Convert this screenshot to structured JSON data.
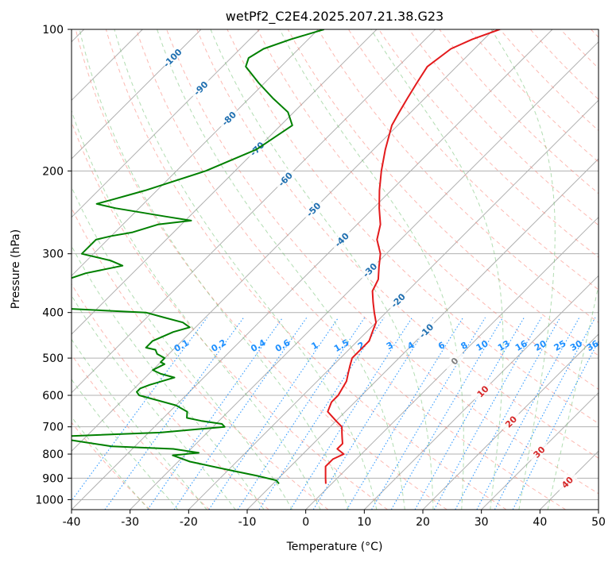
{
  "chart_data": {
    "type": "line",
    "title": "wetPf2_C2E4.2025.207.21.38.G23",
    "xlabel": "Temperature (°C)",
    "ylabel": "Pressure (hPa)",
    "xlim": [
      -40,
      50
    ],
    "ylim": [
      1050,
      100
    ],
    "y_scale": "log",
    "skew_deg": 45,
    "grid": true,
    "x_ticks": [
      "-40",
      "-30",
      "-20",
      "-10",
      "0",
      "10",
      "20",
      "30",
      "40",
      "50"
    ],
    "y_ticks": [
      "100",
      "200",
      "300",
      "400",
      "500",
      "600",
      "700",
      "800",
      "900",
      "1000"
    ],
    "series": [
      {
        "color": "#e31a1c",
        "pressure": [
          925,
          900,
          850,
          820,
          800,
          780,
          760,
          740,
          720,
          700,
          680,
          650,
          620,
          600,
          560,
          540,
          520,
          500,
          480,
          460,
          440,
          420,
          400,
          380,
          360,
          340,
          320,
          300,
          280,
          260,
          240,
          220,
          200,
          180,
          160,
          150,
          140,
          130,
          120,
          110,
          105,
          100
        ],
        "temperature": [
          -1,
          -2,
          -4,
          -4,
          -3,
          -5,
          -5,
          -6,
          -7,
          -8,
          -10,
          -13,
          -14,
          -14,
          -15,
          -16,
          -17,
          -18,
          -18,
          -18,
          -19,
          -20,
          -22,
          -24,
          -26,
          -27,
          -29,
          -31,
          -34,
          -36,
          -39,
          -42,
          -45,
          -48,
          -51,
          -52,
          -53,
          -54,
          -55,
          -54,
          -52,
          -49
        ]
      },
      {
        "color": "#008000",
        "pressure": [
          925,
          910,
          890,
          860,
          830,
          805,
          795,
          780,
          770,
          750,
          735,
          720,
          700,
          690,
          680,
          670,
          650,
          630,
          600,
          590,
          580,
          570,
          550,
          540,
          530,
          515,
          510,
          500,
          490,
          480,
          475,
          460,
          440,
          430,
          420,
          410,
          400,
          390,
          370,
          330,
          318,
          310,
          300,
          280,
          275,
          270,
          260,
          255,
          250,
          240,
          235,
          230,
          225,
          220,
          200,
          180,
          160,
          150,
          140,
          130,
          120,
          115,
          110,
          105,
          100
        ],
        "temperature": [
          -9,
          -10,
          -14,
          -21,
          -28,
          -32,
          -28,
          -33,
          -44,
          -51,
          -56,
          -38,
          -28,
          -29,
          -33,
          -36,
          -37,
          -40,
          -48,
          -49,
          -49,
          -48,
          -45,
          -48,
          -50,
          -49,
          -50,
          -50,
          -52,
          -53,
          -55,
          -55,
          -53,
          -51,
          -53,
          -57,
          -61,
          -80,
          -86,
          -78,
          -73,
          -76,
          -82,
          -82,
          -80,
          -77,
          -74,
          -69,
          -74,
          -84,
          -88,
          -86,
          -84,
          -82,
          -75,
          -70,
          -68,
          -71,
          -76,
          -81,
          -86,
          -87,
          -86,
          -83,
          -79
        ]
      }
    ],
    "annotations": {
      "mixing_ratio_labels": [
        "0.1",
        "0.2",
        "0.4",
        "0.6",
        "1",
        "1.5",
        "2",
        "3",
        "4",
        "6",
        "8",
        "10",
        "13",
        "16",
        "20",
        "25",
        "30",
        "36"
      ],
      "isotherm_labels": [
        "-100",
        "-90",
        "-80",
        "-70",
        "-60",
        "-50",
        "-40",
        "-30",
        "-20",
        "-10",
        "0",
        "10",
        "20",
        "30",
        "40"
      ],
      "colors": {
        "mixing_ratio": "#1e90ff",
        "isotherm_cold": "#1f6fb0",
        "isotherm_zero": "#808080",
        "isotherm_warm": "#d62728",
        "dry_adiabat": "#fa8072",
        "moist_adiabat": "#66bb66",
        "sat_lines": "#d2b48c"
      }
    }
  }
}
